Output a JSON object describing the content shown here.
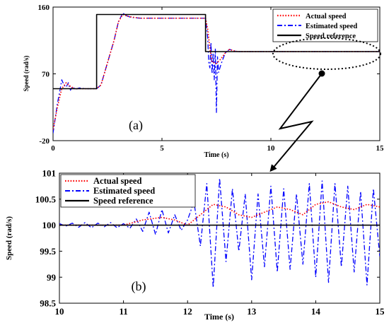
{
  "chart_data": [
    {
      "type": "line",
      "panel_label": "(a)",
      "xlabel": "Time (s)",
      "ylabel": "Speed (rad/s)",
      "xlim": [
        0,
        15
      ],
      "ylim": [
        -20,
        160
      ],
      "xticks": [
        0,
        5,
        10,
        15
      ],
      "yticks": [
        -20,
        70,
        160
      ],
      "grid": false,
      "legend_position": "top-right",
      "legend": [
        "Actual speed",
        "Estimated speed",
        "Speed reference"
      ],
      "series": [
        {
          "name": "Actual speed",
          "style": "dotted",
          "color": "#ff0000",
          "x": [
            0,
            0.2,
            0.4,
            0.6,
            0.8,
            1.0,
            1.2,
            1.5,
            1.8,
            2.0,
            2.2,
            2.5,
            2.8,
            3.0,
            3.2,
            3.5,
            4.0,
            5.0,
            6.0,
            7.0,
            7.1,
            7.2,
            7.3,
            7.5,
            7.7,
            7.9,
            8.1,
            8.3,
            8.5,
            9.0,
            10.0,
            12.0,
            14.0,
            15.0
          ],
          "y": [
            -5,
            25,
            50,
            58,
            53,
            50,
            50,
            50,
            50,
            50,
            55,
            85,
            115,
            140,
            150,
            147,
            145,
            145,
            145,
            145,
            130,
            105,
            86,
            84,
            90,
            98,
            103,
            101,
            100,
            100,
            100,
            100,
            100,
            100
          ]
        },
        {
          "name": "Estimated speed",
          "style": "dashdot",
          "color": "#0000ff",
          "x": [
            0,
            0.1,
            0.2,
            0.3,
            0.4,
            0.5,
            0.6,
            0.7,
            0.8,
            0.9,
            1.0,
            1.2,
            1.5,
            1.8,
            2.0,
            2.2,
            2.5,
            2.8,
            3.0,
            3.2,
            3.4,
            3.6,
            4.0,
            5.0,
            6.0,
            7.0,
            7.05,
            7.1,
            7.15,
            7.2,
            7.25,
            7.3,
            7.35,
            7.4,
            7.45,
            7.5,
            7.55,
            7.6,
            7.7,
            7.8,
            7.9,
            8.1,
            8.3,
            8.5,
            9.0,
            10.0,
            12.0,
            14.0,
            15.0
          ],
          "y": [
            -10,
            10,
            30,
            45,
            62,
            55,
            52,
            58,
            48,
            53,
            49,
            51,
            50,
            50,
            50,
            55,
            85,
            115,
            140,
            152,
            148,
            146,
            145,
            145,
            145,
            145,
            133,
            118,
            85,
            78,
            112,
            70,
            98,
            62,
            104,
            18,
            93,
            72,
            82,
            90,
            98,
            103,
            101,
            100,
            100,
            100,
            100,
            100,
            100
          ]
        },
        {
          "name": "Speed reference",
          "style": "solid",
          "color": "#000000",
          "x": [
            0,
            2,
            2,
            7,
            7,
            15
          ],
          "y": [
            50,
            50,
            150,
            150,
            100,
            100
          ]
        }
      ]
    },
    {
      "type": "line",
      "panel_label": "(b)",
      "xlabel": "Time (s)",
      "ylabel": "Speed (rad/s)",
      "xlim": [
        10,
        15
      ],
      "ylim": [
        98.5,
        101
      ],
      "xticks": [
        10,
        11,
        12,
        13,
        14,
        15
      ],
      "yticks": [
        98.5,
        99,
        99.5,
        100,
        100.5,
        101
      ],
      "grid": false,
      "legend_position": "top-left",
      "legend": [
        "Actual speed",
        "Estimated speed",
        "Speed reference"
      ],
      "series": [
        {
          "name": "Actual speed",
          "style": "dotted",
          "color": "#ff0000",
          "x": [
            10,
            10.5,
            11,
            11.3,
            11.6,
            11.8,
            12,
            12.2,
            12.4,
            12.6,
            12.8,
            13,
            13.2,
            13.4,
            13.6,
            13.8,
            14,
            14.2,
            14.4,
            14.6,
            14.8,
            15
          ],
          "y": [
            100,
            100,
            100,
            100.1,
            100.15,
            100.1,
            100,
            100.2,
            100.4,
            100.35,
            100.2,
            100.15,
            100.25,
            100.35,
            100.3,
            100.2,
            100.4,
            100.45,
            100.35,
            100.3,
            100.4,
            100.35
          ]
        },
        {
          "name": "Estimated speed",
          "style": "dashdot",
          "color": "#0000ff",
          "x": [
            10,
            10.1,
            10.2,
            10.3,
            10.4,
            10.5,
            10.6,
            10.7,
            10.8,
            10.9,
            11,
            11.1,
            11.2,
            11.3,
            11.4,
            11.5,
            11.6,
            11.7,
            11.8,
            11.9,
            12,
            12.1,
            12.2,
            12.3,
            12.4,
            12.5,
            12.6,
            12.7,
            12.8,
            12.9,
            13,
            13.1,
            13.2,
            13.3,
            13.4,
            13.5,
            13.6,
            13.7,
            13.8,
            13.9,
            14,
            14.1,
            14.2,
            14.3,
            14.4,
            14.5,
            14.6,
            14.7,
            14.8,
            14.9,
            15
          ],
          "y": [
            100.03,
            99.98,
            100.04,
            99.96,
            100.05,
            99.95,
            100.04,
            99.97,
            100.05,
            99.95,
            100.03,
            99.94,
            100.12,
            99.88,
            100.25,
            99.82,
            100.3,
            99.85,
            100.2,
            99.9,
            100.1,
            100.45,
            99.6,
            100.8,
            98.8,
            100.9,
            99.3,
            100.7,
            99.5,
            100.6,
            98.95,
            100.6,
            99.2,
            100.75,
            99.1,
            100.7,
            99.15,
            100.6,
            99.25,
            100.8,
            99.0,
            100.85,
            98.9,
            100.8,
            99.2,
            100.75,
            99.1,
            100.65,
            98.85,
            100.7,
            99.4
          ]
        },
        {
          "name": "Speed reference",
          "style": "solid",
          "color": "#000000",
          "x": [
            10,
            15
          ],
          "y": [
            100,
            100
          ]
        }
      ]
    }
  ],
  "colors": {
    "actual": "#ff0000",
    "estimated": "#0000ff",
    "reference": "#000000"
  }
}
